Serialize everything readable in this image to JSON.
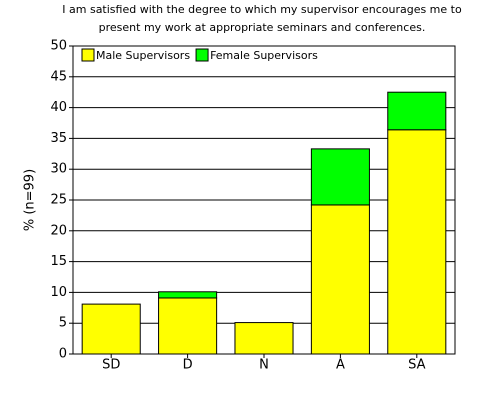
{
  "chart_data": {
    "type": "stacked_bar",
    "title": [
      "I am satisfied with the degree to which my supervisor encourages me to",
      "present my work at appropriate seminars and conferences."
    ],
    "y_label": "% (n=99)",
    "categories": [
      "SD",
      "D",
      "N",
      "A",
      "SA"
    ],
    "series": [
      {
        "name": "Male Supervisors",
        "color": "#ffff00",
        "values": [
          8.1,
          9.1,
          5.1,
          24.2,
          36.4
        ]
      },
      {
        "name": "Female Supervisors",
        "color": "#00ff00",
        "values": [
          0,
          1.0,
          0,
          9.1,
          6.1
        ]
      }
    ],
    "ylim": [
      0,
      50
    ],
    "yticks": [
      0,
      5,
      10,
      15,
      20,
      25,
      30,
      35,
      40,
      45,
      50
    ],
    "grid": true,
    "legend": "top-left"
  }
}
